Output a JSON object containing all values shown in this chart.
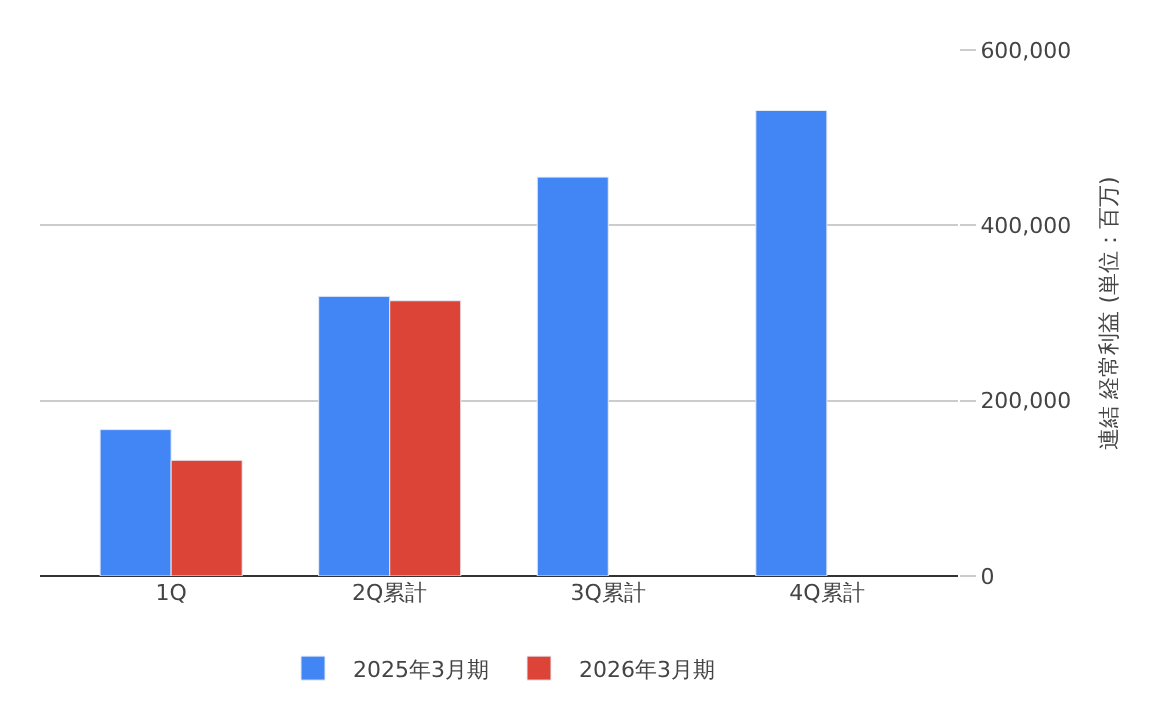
{
  "chart_data": {
    "type": "bar",
    "categories": [
      "1Q",
      "2Q累計",
      "3Q累計",
      "4Q累計"
    ],
    "series": [
      {
        "name": "2025年3月期",
        "color": "#4285f4",
        "values": [
          167000,
          319000,
          455000,
          531000
        ]
      },
      {
        "name": "2026年3月期",
        "color": "#db4437",
        "values": [
          132000,
          314000,
          null,
          null
        ]
      }
    ],
    "y2label": "連結 経常利益 (単位：百万)",
    "ylim": [
      0,
      600000
    ],
    "yticks": [
      {
        "value": 0,
        "label": "0"
      },
      {
        "value": 200000,
        "label": "200,000"
      },
      {
        "value": 400000,
        "label": "400,000"
      },
      {
        "value": 600000,
        "label": "600,000"
      }
    ],
    "grid": "y",
    "legend": "bottom"
  }
}
